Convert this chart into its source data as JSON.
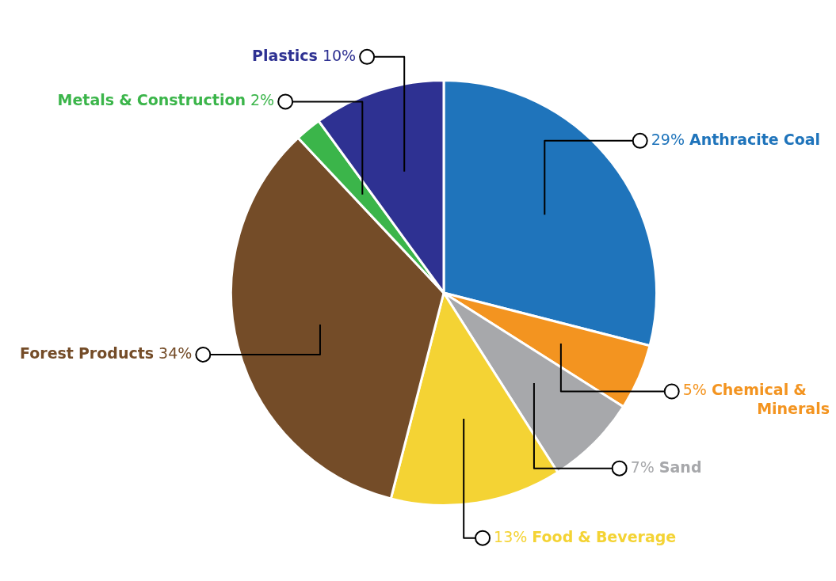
{
  "chart_data": {
    "type": "pie",
    "categories": [
      "Anthracite Coal",
      "Chemical & Minerals",
      "Sand",
      "Food & Beverage",
      "Forest Products",
      "Metals & Construction",
      "Plastics"
    ],
    "values": [
      29,
      5,
      7,
      13,
      34,
      2,
      10
    ],
    "value_labels": [
      "29%",
      "5%",
      "7%",
      "13%",
      "34%",
      "2%",
      "10%"
    ],
    "colors": [
      "#1f74bb",
      "#f39420",
      "#a7a8ab",
      "#f4d334",
      "#744c28",
      "#3bb54a",
      "#2e3192"
    ],
    "legend": false
  }
}
